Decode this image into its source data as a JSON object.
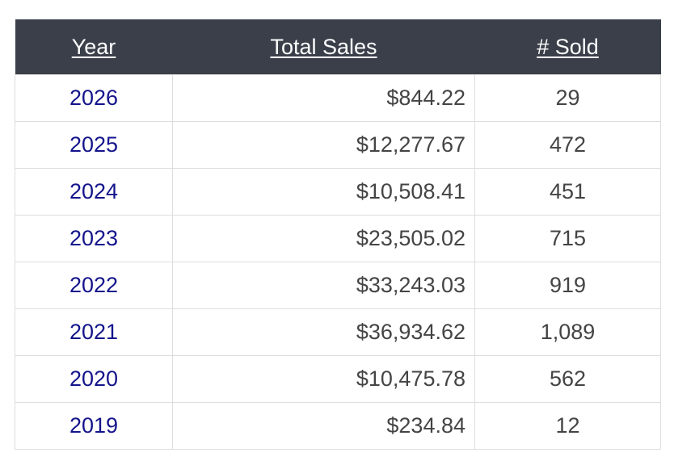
{
  "table": {
    "headers": {
      "year": "Year",
      "total_sales": "Total Sales",
      "sold": "# Sold"
    },
    "rows": [
      {
        "year": "2026",
        "total_sales": "$844.22",
        "sold": "29"
      },
      {
        "year": "2025",
        "total_sales": "$12,277.67",
        "sold": "472"
      },
      {
        "year": "2024",
        "total_sales": "$10,508.41",
        "sold": "451"
      },
      {
        "year": "2023",
        "total_sales": "$23,505.02",
        "sold": "715"
      },
      {
        "year": "2022",
        "total_sales": "$33,243.03",
        "sold": "919"
      },
      {
        "year": "2021",
        "total_sales": "$36,934.62",
        "sold": "1,089"
      },
      {
        "year": "2020",
        "total_sales": "$10,475.78",
        "sold": "562"
      },
      {
        "year": "2019",
        "total_sales": "$234.84",
        "sold": "12"
      }
    ]
  },
  "colors": {
    "header_bg": "#3a3f4a",
    "header_text": "#ffffff",
    "year_link": "#14148c",
    "cell_text": "#444444",
    "border": "#dddddd"
  }
}
